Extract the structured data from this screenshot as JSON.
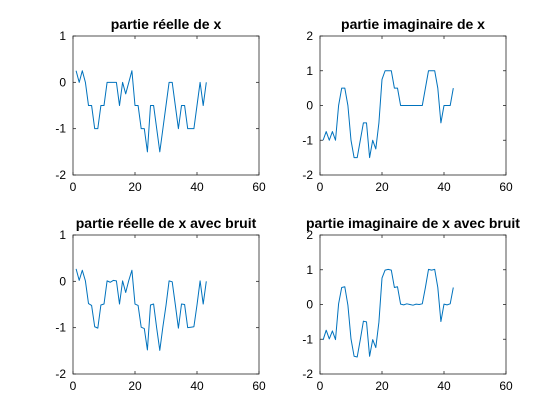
{
  "figure": {
    "background": "#ffffff",
    "line_color": "#0072BD",
    "axis_color": "#262626"
  },
  "chart_data": [
    {
      "type": "line",
      "title": "partie réelle de x",
      "xlabel": "",
      "ylabel": "",
      "xlim": [
        0,
        60
      ],
      "ylim": [
        -2,
        1
      ],
      "xticks": [
        0,
        20,
        40,
        60
      ],
      "yticks": [
        -2,
        -1,
        0,
        1
      ],
      "grid": false,
      "series": [
        {
          "x": [
            1,
            2,
            3,
            4,
            5,
            6,
            7,
            8,
            9,
            10,
            11,
            12,
            13,
            14,
            15,
            16,
            17,
            18,
            19,
            20,
            21,
            22,
            23,
            24,
            25,
            26,
            27,
            28,
            29,
            30,
            31,
            32,
            33,
            34,
            35,
            36,
            37,
            38,
            39,
            40,
            41,
            42,
            43
          ],
          "values": [
            0.25,
            0,
            0.25,
            0,
            -0.5,
            -0.5,
            -1,
            -1,
            -0.5,
            -0.5,
            0,
            0,
            0,
            0,
            -0.5,
            0,
            -0.25,
            0,
            0.25,
            -0.5,
            -0.5,
            -1,
            -1,
            -1.5,
            -0.5,
            -0.5,
            -1,
            -1.5,
            -1,
            -0.5,
            0,
            0,
            -0.5,
            -1,
            -0.5,
            -0.5,
            -1,
            -1,
            -1,
            -0.5,
            0,
            -0.5,
            0
          ]
        }
      ]
    },
    {
      "type": "line",
      "title": "partie imaginaire de x",
      "xlabel": "",
      "ylabel": "",
      "xlim": [
        0,
        60
      ],
      "ylim": [
        -2,
        2
      ],
      "xticks": [
        0,
        20,
        40,
        60
      ],
      "yticks": [
        -2,
        -1,
        0,
        1,
        2
      ],
      "grid": false,
      "series": [
        {
          "x": [
            1,
            2,
            3,
            4,
            5,
            6,
            7,
            8,
            9,
            10,
            11,
            12,
            13,
            14,
            15,
            16,
            17,
            18,
            19,
            20,
            21,
            22,
            23,
            24,
            25,
            26,
            27,
            28,
            29,
            30,
            31,
            32,
            33,
            34,
            35,
            36,
            37,
            38,
            39,
            40,
            41,
            42,
            43
          ],
          "values": [
            -1,
            -0.75,
            -1,
            -0.75,
            -1,
            0,
            0.5,
            0.5,
            0,
            -1,
            -1.5,
            -1.5,
            -1,
            -0.5,
            -0.5,
            -1.5,
            -1,
            -1.25,
            -0.5,
            0.75,
            1,
            1,
            1,
            0.5,
            0.5,
            0,
            0,
            0,
            0,
            0,
            0,
            0,
            0,
            0.5,
            1,
            1,
            1,
            0.5,
            -0.5,
            0,
            0,
            0,
            0.5
          ]
        }
      ]
    },
    {
      "type": "line",
      "title": "partie réelle de x avec bruit",
      "xlabel": "",
      "ylabel": "",
      "xlim": [
        0,
        60
      ],
      "ylim": [
        -2,
        1
      ],
      "xticks": [
        0,
        20,
        40,
        60
      ],
      "yticks": [
        -2,
        -1,
        0,
        1
      ],
      "grid": false,
      "series": [
        {
          "x": [
            1,
            2,
            3,
            4,
            5,
            6,
            7,
            8,
            9,
            10,
            11,
            12,
            13,
            14,
            15,
            16,
            17,
            18,
            19,
            20,
            21,
            22,
            23,
            24,
            25,
            26,
            27,
            28,
            29,
            30,
            31,
            32,
            33,
            34,
            35,
            36,
            37,
            38,
            39,
            40,
            41,
            42,
            43
          ],
          "values": [
            0.27,
            0.02,
            0.24,
            0.01,
            -0.48,
            -0.52,
            -0.98,
            -1.01,
            -0.51,
            -0.49,
            0.01,
            -0.02,
            0.02,
            0.01,
            -0.49,
            0.01,
            -0.24,
            0.02,
            0.24,
            -0.49,
            -0.52,
            -0.99,
            -1.02,
            -1.48,
            -0.51,
            -0.49,
            -1.01,
            -1.49,
            -0.98,
            -0.52,
            0.01,
            -0.01,
            -0.5,
            -1.01,
            -0.49,
            -0.5,
            -1,
            -0.99,
            -0.98,
            -0.51,
            0.01,
            -0.49,
            0
          ]
        }
      ]
    },
    {
      "type": "line",
      "title": "partie imaginaire de x avec bruit",
      "xlabel": "",
      "ylabel": "",
      "xlim": [
        0,
        60
      ],
      "ylim": [
        -2,
        2
      ],
      "xticks": [
        0,
        20,
        40,
        60
      ],
      "yticks": [
        -2,
        -1,
        0,
        1,
        2
      ],
      "grid": false,
      "series": [
        {
          "x": [
            1,
            2,
            3,
            4,
            5,
            6,
            7,
            8,
            9,
            10,
            11,
            12,
            13,
            14,
            15,
            16,
            17,
            18,
            19,
            20,
            21,
            22,
            23,
            24,
            25,
            26,
            27,
            28,
            29,
            30,
            31,
            32,
            33,
            34,
            35,
            36,
            37,
            38,
            39,
            40,
            41,
            42,
            43
          ],
          "values": [
            -1.02,
            -0.74,
            -0.99,
            -0.76,
            -1.01,
            0.02,
            0.49,
            0.51,
            -0.02,
            -0.99,
            -1.49,
            -1.51,
            -1.01,
            -0.48,
            -0.5,
            -1.49,
            -1.01,
            -1.24,
            -0.51,
            0.76,
            0.99,
            1.01,
            0.99,
            0.49,
            0.51,
            0.01,
            -0.01,
            0.02,
            0,
            -0.02,
            0.01,
            0,
            0.02,
            0.49,
            1.01,
            0.99,
            1.01,
            0.49,
            -0.49,
            0.01,
            -0.01,
            0.02,
            0.49
          ]
        }
      ]
    }
  ]
}
